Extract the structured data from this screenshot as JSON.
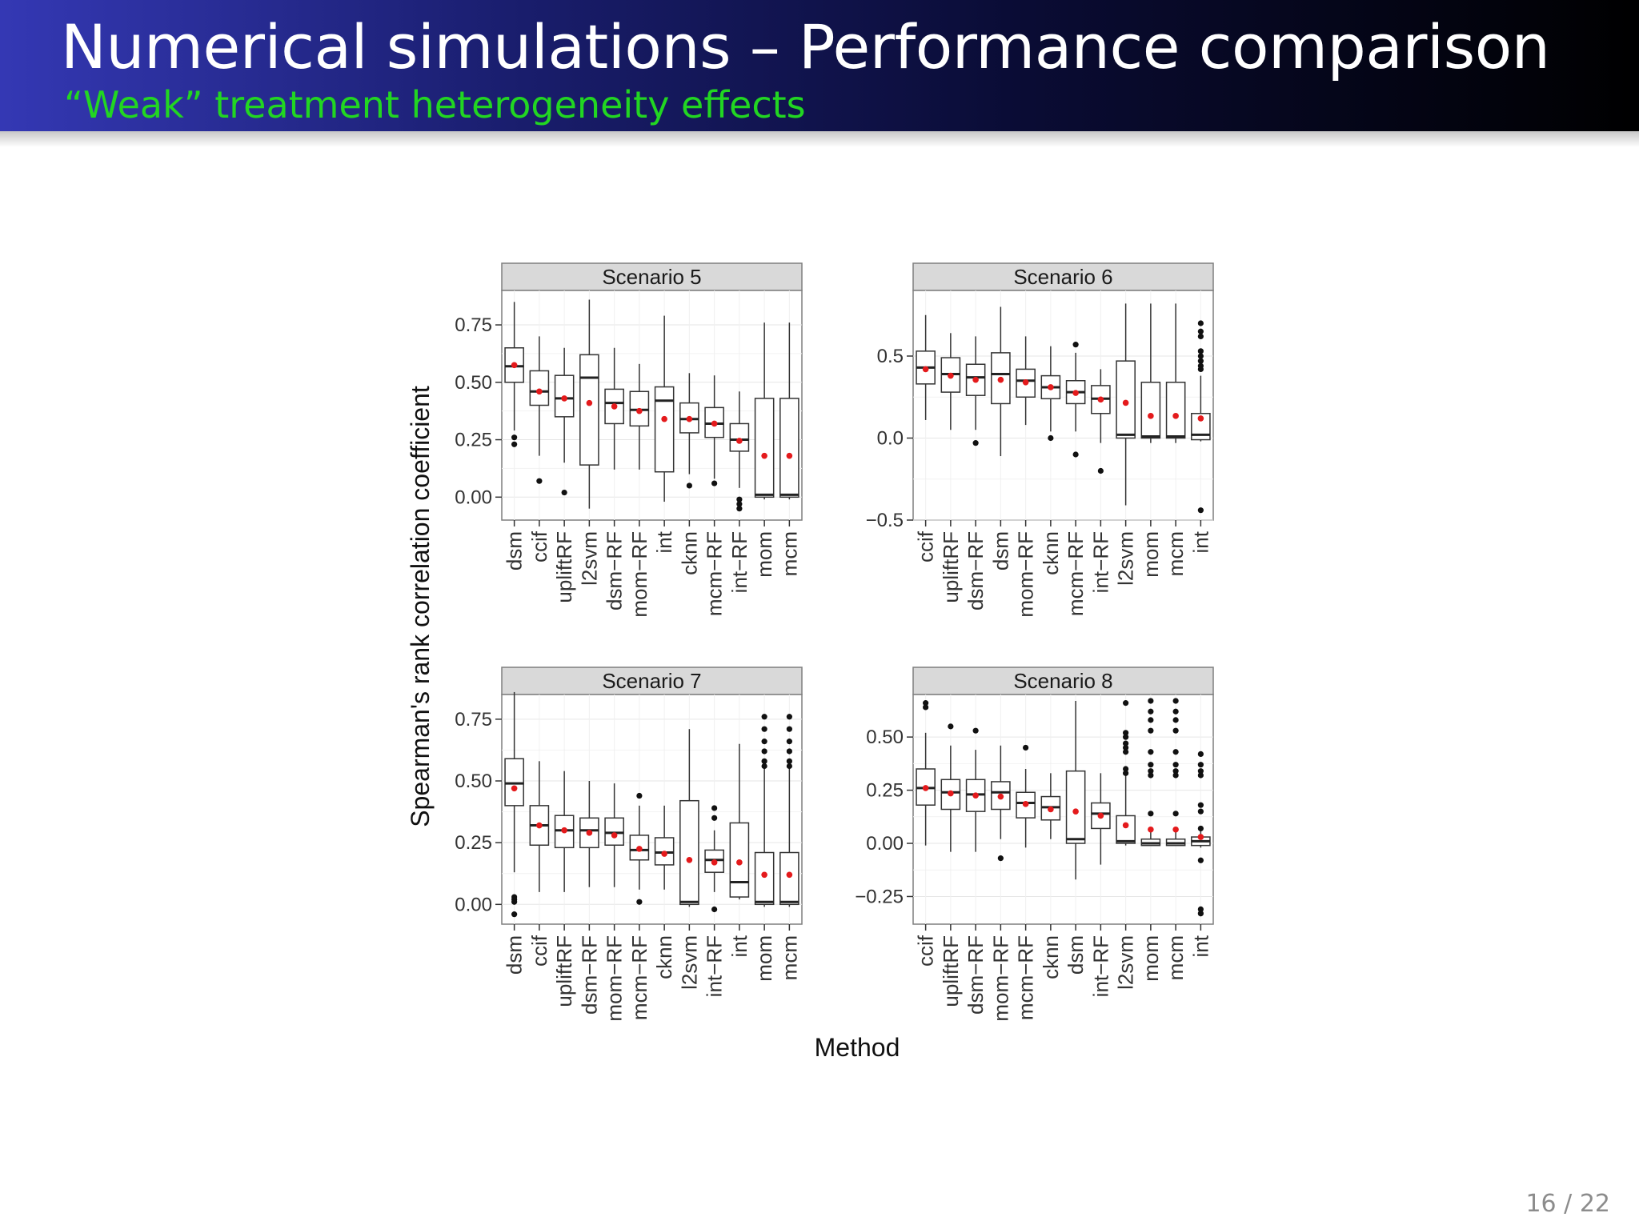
{
  "slide": {
    "title": "Numerical simulations – Performance comparison",
    "subtitle": "“Weak” treatment heterogeneity effects",
    "page": "16 / 22"
  },
  "colors": {
    "header_start": "#3438b4",
    "header_end": "#000000",
    "subtitle": "#22d622",
    "mean_dot": "#e41a1c",
    "strip": "#d9d9d9"
  },
  "chart_data": {
    "type": "box",
    "ylabel": "Spearman's rank correlation coefficient",
    "xlabel": "Method",
    "legend": "none",
    "grid": true,
    "panels": [
      {
        "title": "Scenario 5",
        "ylim": [
          -0.1,
          0.9
        ],
        "yticks": [
          0.0,
          0.25,
          0.5,
          0.75
        ],
        "ytick_labels": [
          "0.00",
          "0.25",
          "0.50",
          "0.75"
        ],
        "categories": [
          "dsm",
          "ccif",
          "upliftRF",
          "l2svm",
          "dsm−RF",
          "mom−RF",
          "int",
          "cknn",
          "mcm−RF",
          "int−RF",
          "mom",
          "mcm"
        ],
        "boxes": [
          {
            "min": 0.29,
            "q1": 0.5,
            "median": 0.57,
            "q3": 0.65,
            "max": 0.85,
            "mean": 0.575,
            "outliers": [
              0.26,
              0.23
            ]
          },
          {
            "min": 0.18,
            "q1": 0.4,
            "median": 0.46,
            "q3": 0.55,
            "max": 0.7,
            "mean": 0.46,
            "outliers": [
              0.07
            ]
          },
          {
            "min": 0.15,
            "q1": 0.35,
            "median": 0.43,
            "q3": 0.53,
            "max": 0.65,
            "mean": 0.43,
            "outliers": [
              0.02
            ]
          },
          {
            "min": -0.05,
            "q1": 0.14,
            "median": 0.52,
            "q3": 0.62,
            "max": 0.86,
            "mean": 0.41,
            "outliers": []
          },
          {
            "min": 0.12,
            "q1": 0.32,
            "median": 0.41,
            "q3": 0.47,
            "max": 0.65,
            "mean": 0.395,
            "outliers": []
          },
          {
            "min": 0.12,
            "q1": 0.31,
            "median": 0.38,
            "q3": 0.46,
            "max": 0.58,
            "mean": 0.375,
            "outliers": []
          },
          {
            "min": -0.02,
            "q1": 0.11,
            "median": 0.42,
            "q3": 0.48,
            "max": 0.79,
            "mean": 0.34,
            "outliers": []
          },
          {
            "min": 0.1,
            "q1": 0.28,
            "median": 0.34,
            "q3": 0.41,
            "max": 0.54,
            "mean": 0.34,
            "outliers": [
              0.05
            ]
          },
          {
            "min": 0.08,
            "q1": 0.26,
            "median": 0.32,
            "q3": 0.39,
            "max": 0.53,
            "mean": 0.32,
            "outliers": [
              0.06
            ]
          },
          {
            "min": 0.04,
            "q1": 0.2,
            "median": 0.25,
            "q3": 0.32,
            "max": 0.46,
            "mean": 0.245,
            "outliers": [
              -0.01,
              -0.03,
              -0.05
            ]
          },
          {
            "min": -0.01,
            "q1": 0.0,
            "median": 0.01,
            "q3": 0.43,
            "max": 0.76,
            "mean": 0.18,
            "outliers": []
          },
          {
            "min": -0.01,
            "q1": 0.0,
            "median": 0.01,
            "q3": 0.43,
            "max": 0.76,
            "mean": 0.18,
            "outliers": []
          }
        ]
      },
      {
        "title": "Scenario 6",
        "ylim": [
          -0.5,
          0.9
        ],
        "yticks": [
          -0.5,
          0.0,
          0.5
        ],
        "ytick_labels": [
          "−0.5",
          "0.0",
          "0.5"
        ],
        "categories": [
          "ccif",
          "upliftRF",
          "dsm−RF",
          "dsm",
          "mom−RF",
          "cknn",
          "mcm−RF",
          "int−RF",
          "l2svm",
          "mom",
          "mcm",
          "int"
        ],
        "boxes": [
          {
            "min": 0.11,
            "q1": 0.33,
            "median": 0.43,
            "q3": 0.53,
            "max": 0.75,
            "mean": 0.42,
            "outliers": []
          },
          {
            "min": 0.05,
            "q1": 0.28,
            "median": 0.39,
            "q3": 0.49,
            "max": 0.64,
            "mean": 0.38,
            "outliers": []
          },
          {
            "min": 0.05,
            "q1": 0.26,
            "median": 0.37,
            "q3": 0.45,
            "max": 0.62,
            "mean": 0.355,
            "outliers": [
              -0.03
            ]
          },
          {
            "min": -0.11,
            "q1": 0.21,
            "median": 0.39,
            "q3": 0.52,
            "max": 0.8,
            "mean": 0.355,
            "outliers": []
          },
          {
            "min": 0.08,
            "q1": 0.25,
            "median": 0.35,
            "q3": 0.42,
            "max": 0.62,
            "mean": 0.34,
            "outliers": []
          },
          {
            "min": 0.04,
            "q1": 0.24,
            "median": 0.31,
            "q3": 0.38,
            "max": 0.56,
            "mean": 0.31,
            "outliers": [
              0.0
            ]
          },
          {
            "min": 0.04,
            "q1": 0.21,
            "median": 0.28,
            "q3": 0.35,
            "max": 0.52,
            "mean": 0.275,
            "outliers": [
              0.57,
              -0.1
            ]
          },
          {
            "min": -0.03,
            "q1": 0.15,
            "median": 0.24,
            "q3": 0.32,
            "max": 0.42,
            "mean": 0.235,
            "outliers": [
              -0.2
            ]
          },
          {
            "min": -0.41,
            "q1": 0.0,
            "median": 0.02,
            "q3": 0.47,
            "max": 0.82,
            "mean": 0.215,
            "outliers": []
          },
          {
            "min": -0.03,
            "q1": 0.0,
            "median": 0.01,
            "q3": 0.34,
            "max": 0.82,
            "mean": 0.135,
            "outliers": []
          },
          {
            "min": -0.03,
            "q1": 0.0,
            "median": 0.01,
            "q3": 0.34,
            "max": 0.82,
            "mean": 0.135,
            "outliers": []
          },
          {
            "min": -0.02,
            "q1": -0.01,
            "median": 0.02,
            "q3": 0.15,
            "max": 0.38,
            "mean": 0.12,
            "outliers": [
              0.7,
              0.65,
              0.62,
              0.53,
              0.5,
              0.47,
              0.44,
              0.42,
              -0.44
            ]
          }
        ]
      },
      {
        "title": "Scenario 7",
        "ylim": [
          -0.08,
          0.85
        ],
        "yticks": [
          0.0,
          0.25,
          0.5,
          0.75
        ],
        "ytick_labels": [
          "0.00",
          "0.25",
          "0.50",
          "0.75"
        ],
        "categories": [
          "dsm",
          "ccif",
          "upliftRF",
          "dsm−RF",
          "mom−RF",
          "mcm−RF",
          "cknn",
          "l2svm",
          "int−RF",
          "int",
          "mom",
          "mcm"
        ],
        "boxes": [
          {
            "min": 0.13,
            "q1": 0.4,
            "median": 0.49,
            "q3": 0.59,
            "max": 0.86,
            "mean": 0.47,
            "outliers": [
              0.03,
              0.02,
              0.01,
              -0.04
            ]
          },
          {
            "min": 0.05,
            "q1": 0.24,
            "median": 0.32,
            "q3": 0.4,
            "max": 0.58,
            "mean": 0.32,
            "outliers": []
          },
          {
            "min": 0.05,
            "q1": 0.23,
            "median": 0.3,
            "q3": 0.36,
            "max": 0.54,
            "mean": 0.3,
            "outliers": []
          },
          {
            "min": 0.07,
            "q1": 0.23,
            "median": 0.3,
            "q3": 0.35,
            "max": 0.5,
            "mean": 0.29,
            "outliers": []
          },
          {
            "min": 0.07,
            "q1": 0.24,
            "median": 0.29,
            "q3": 0.35,
            "max": 0.49,
            "mean": 0.28,
            "outliers": []
          },
          {
            "min": 0.06,
            "q1": 0.18,
            "median": 0.22,
            "q3": 0.28,
            "max": 0.4,
            "mean": 0.225,
            "outliers": [
              0.44,
              0.01
            ]
          },
          {
            "min": 0.06,
            "q1": 0.16,
            "median": 0.21,
            "q3": 0.27,
            "max": 0.4,
            "mean": 0.205,
            "outliers": []
          },
          {
            "min": -0.01,
            "q1": 0.0,
            "median": 0.01,
            "q3": 0.42,
            "max": 0.71,
            "mean": 0.18,
            "outliers": []
          },
          {
            "min": 0.05,
            "q1": 0.13,
            "median": 0.18,
            "q3": 0.22,
            "max": 0.3,
            "mean": 0.17,
            "outliers": [
              0.39,
              0.35,
              -0.02
            ]
          },
          {
            "min": 0.02,
            "q1": 0.03,
            "median": 0.09,
            "q3": 0.33,
            "max": 0.65,
            "mean": 0.17,
            "outliers": []
          },
          {
            "min": -0.01,
            "q1": 0.0,
            "median": 0.01,
            "q3": 0.21,
            "max": 0.55,
            "mean": 0.12,
            "outliers": [
              0.76,
              0.71,
              0.66,
              0.62,
              0.58,
              0.56
            ]
          },
          {
            "min": -0.01,
            "q1": 0.0,
            "median": 0.01,
            "q3": 0.21,
            "max": 0.55,
            "mean": 0.12,
            "outliers": [
              0.76,
              0.71,
              0.66,
              0.62,
              0.58,
              0.56
            ]
          }
        ]
      },
      {
        "title": "Scenario 8",
        "ylim": [
          -0.38,
          0.7
        ],
        "yticks": [
          -0.25,
          0.0,
          0.25,
          0.5
        ],
        "ytick_labels": [
          "−0.25",
          "0.00",
          "0.25",
          "0.50"
        ],
        "categories": [
          "ccif",
          "upliftRF",
          "dsm−RF",
          "mom−RF",
          "mcm−RF",
          "cknn",
          "dsm",
          "int−RF",
          "l2svm",
          "mom",
          "mcm",
          "int"
        ],
        "boxes": [
          {
            "min": -0.01,
            "q1": 0.18,
            "median": 0.26,
            "q3": 0.35,
            "max": 0.52,
            "mean": 0.26,
            "outliers": [
              0.66,
              0.64
            ]
          },
          {
            "min": -0.04,
            "q1": 0.16,
            "median": 0.24,
            "q3": 0.3,
            "max": 0.46,
            "mean": 0.235,
            "outliers": [
              0.55
            ]
          },
          {
            "min": -0.04,
            "q1": 0.15,
            "median": 0.23,
            "q3": 0.3,
            "max": 0.44,
            "mean": 0.225,
            "outliers": [
              0.53
            ]
          },
          {
            "min": 0.02,
            "q1": 0.16,
            "median": 0.24,
            "q3": 0.29,
            "max": 0.46,
            "mean": 0.22,
            "outliers": [
              -0.07
            ]
          },
          {
            "min": -0.02,
            "q1": 0.12,
            "median": 0.19,
            "q3": 0.24,
            "max": 0.35,
            "mean": 0.185,
            "outliers": [
              0.45
            ]
          },
          {
            "min": 0.02,
            "q1": 0.11,
            "median": 0.17,
            "q3": 0.22,
            "max": 0.33,
            "mean": 0.16,
            "outliers": []
          },
          {
            "min": -0.17,
            "q1": 0.0,
            "median": 0.02,
            "q3": 0.34,
            "max": 0.67,
            "mean": 0.15,
            "outliers": []
          },
          {
            "min": -0.1,
            "q1": 0.07,
            "median": 0.14,
            "q3": 0.19,
            "max": 0.33,
            "mean": 0.13,
            "outliers": []
          },
          {
            "min": -0.01,
            "q1": 0.0,
            "median": 0.01,
            "q3": 0.13,
            "max": 0.32,
            "mean": 0.085,
            "outliers": [
              0.66,
              0.52,
              0.5,
              0.47,
              0.45,
              0.43,
              0.35,
              0.33
            ]
          },
          {
            "min": -0.01,
            "q1": -0.01,
            "median": 0.0,
            "q3": 0.02,
            "max": 0.06,
            "mean": 0.065,
            "outliers": [
              0.67,
              0.62,
              0.58,
              0.53,
              0.43,
              0.37,
              0.34,
              0.32,
              0.14
            ]
          },
          {
            "min": -0.01,
            "q1": -0.01,
            "median": 0.0,
            "q3": 0.02,
            "max": 0.06,
            "mean": 0.065,
            "outliers": [
              0.67,
              0.62,
              0.58,
              0.53,
              0.43,
              0.37,
              0.34,
              0.32,
              0.14
            ]
          },
          {
            "min": -0.02,
            "q1": -0.01,
            "median": 0.01,
            "q3": 0.03,
            "max": 0.06,
            "mean": 0.03,
            "outliers": [
              0.42,
              0.37,
              0.34,
              0.32,
              0.18,
              0.15,
              0.07,
              -0.08,
              -0.31,
              -0.33
            ]
          }
        ]
      }
    ]
  }
}
